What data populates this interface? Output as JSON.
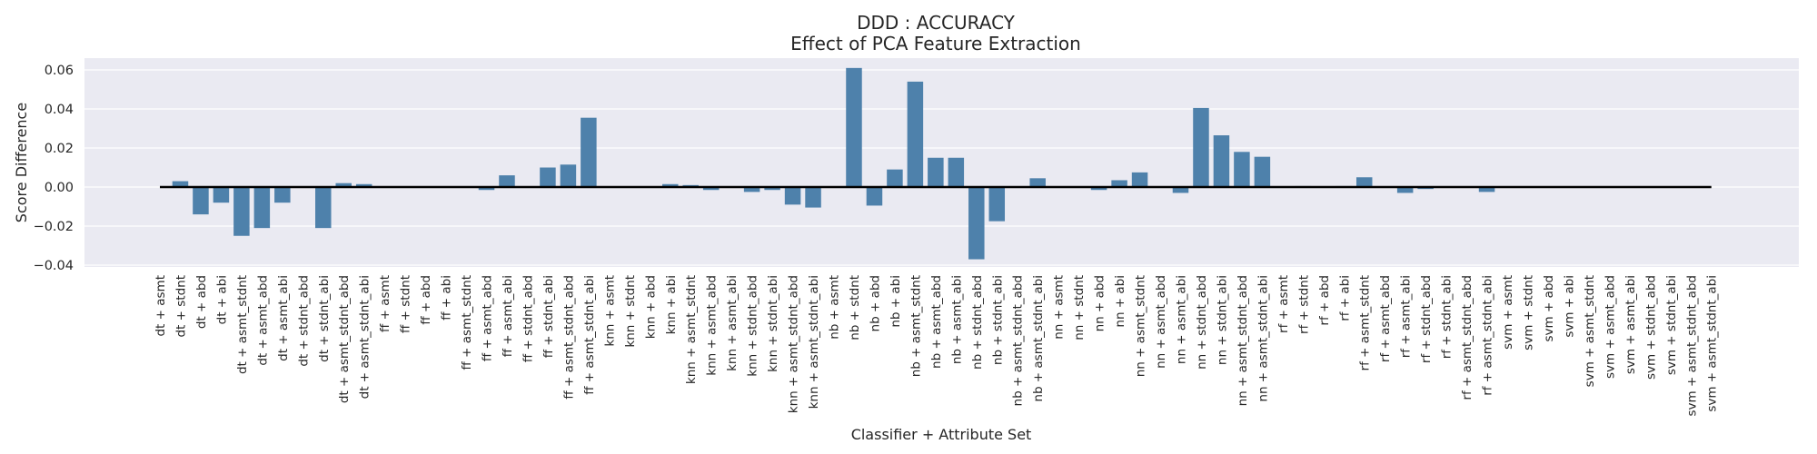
{
  "chart_data": {
    "type": "bar",
    "title": "DDD : ACCURACY",
    "subtitle": "Effect of PCA Feature Extraction",
    "xlabel": "Classifier + Attribute Set",
    "ylabel": "Score Difference",
    "ylim": [
      -0.04,
      0.065
    ],
    "yticks": [
      "−0.04",
      "−0.02",
      "0.00",
      "0.02",
      "0.04",
      "0.06"
    ],
    "ytick_values": [
      -0.04,
      -0.02,
      0.0,
      0.02,
      0.04,
      0.06
    ],
    "grid": true,
    "zero_line": true,
    "bar_color": "#4e81ab",
    "background_color": "#eaeaf2",
    "categories": [
      "dt + asmt",
      "dt + stdnt",
      "dt + abd",
      "dt + abi",
      "dt + asmt_stdnt",
      "dt + asmt_abd",
      "dt + asmt_abi",
      "dt + stdnt_abd",
      "dt + stdnt_abi",
      "dt + asmt_stdnt_abd",
      "dt + asmt_stdnt_abi",
      "ff + asmt",
      "ff + stdnt",
      "ff + abd",
      "ff + abi",
      "ff + asmt_stdnt",
      "ff + asmt_abd",
      "ff + asmt_abi",
      "ff + stdnt_abd",
      "ff + stdnt_abi",
      "ff + asmt_stdnt_abd",
      "ff + asmt_stdnt_abi",
      "knn + asmt",
      "knn + stdnt",
      "knn + abd",
      "knn + abi",
      "knn + asmt_stdnt",
      "knn + asmt_abd",
      "knn + asmt_abi",
      "knn + stdnt_abd",
      "knn + stdnt_abi",
      "knn + asmt_stdnt_abd",
      "knn + asmt_stdnt_abi",
      "nb + asmt",
      "nb + stdnt",
      "nb + abd",
      "nb + abi",
      "nb + asmt_stdnt",
      "nb + asmt_abd",
      "nb + asmt_abi",
      "nb + stdnt_abd",
      "nb + stdnt_abi",
      "nb + asmt_stdnt_abd",
      "nb + asmt_stdnt_abi",
      "nn + asmt",
      "nn + stdnt",
      "nn + abd",
      "nn + abi",
      "nn + asmt_stdnt",
      "nn + asmt_abd",
      "nn + asmt_abi",
      "nn + stdnt_abd",
      "nn + stdnt_abi",
      "nn + asmt_stdnt_abd",
      "nn + asmt_stdnt_abi",
      "rf + asmt",
      "rf + stdnt",
      "rf + abd",
      "rf + abi",
      "rf + asmt_stdnt",
      "rf + asmt_abd",
      "rf + asmt_abi",
      "rf + stdnt_abd",
      "rf + stdnt_abi",
      "rf + asmt_stdnt_abd",
      "rf + asmt_stdnt_abi",
      "svm + asmt",
      "svm + stdnt",
      "svm + abd",
      "svm + abi",
      "svm + asmt_stdnt",
      "svm + asmt_abd",
      "svm + asmt_abi",
      "svm + stdnt_abd",
      "svm + stdnt_abi",
      "svm + asmt_stdnt_abd",
      "svm + asmt_stdnt_abi"
    ],
    "values": [
      0.0,
      0.003,
      -0.014,
      -0.008,
      -0.025,
      -0.021,
      -0.008,
      0.0,
      -0.021,
      0.002,
      0.0015,
      0.0,
      0.0,
      0.0,
      0.0,
      0.0,
      -0.0015,
      0.006,
      0.0,
      0.01,
      0.0115,
      0.0355,
      0.0,
      0.0,
      0.0,
      0.0015,
      0.001,
      -0.0015,
      0.0,
      -0.0025,
      -0.0015,
      -0.009,
      -0.0105,
      0.0,
      0.061,
      -0.0095,
      0.009,
      0.054,
      0.015,
      0.015,
      -0.037,
      -0.0175,
      0.0,
      0.0045,
      0.0,
      0.0,
      -0.0015,
      0.0035,
      0.0075,
      0.0,
      -0.003,
      0.0405,
      0.0265,
      0.018,
      0.0155,
      0.0,
      0.0005,
      0.0,
      0.0005,
      0.005,
      0.0,
      -0.003,
      -0.001,
      0.0,
      0.0,
      -0.0025,
      0.0,
      0.0,
      0.0,
      0.0,
      0.0,
      0.0,
      0.0,
      0.0,
      0.0,
      0.0,
      0.0
    ]
  }
}
